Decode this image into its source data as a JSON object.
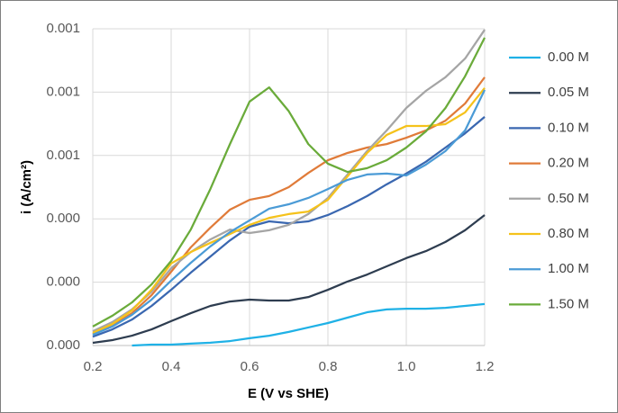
{
  "chart_data": {
    "type": "line",
    "x_label": "E (V vs SHE)",
    "y_label": "i (A/cm²)",
    "x": [
      0.2,
      0.25,
      0.3,
      0.35,
      0.4,
      0.45,
      0.5,
      0.55,
      0.6,
      0.65,
      0.7,
      0.75,
      0.8,
      0.85,
      0.9,
      0.95,
      1.0,
      1.05,
      1.1,
      1.15,
      1.2
    ],
    "xlim": [
      0.2,
      1.2
    ],
    "xticks": [
      0.2,
      0.4,
      0.6,
      0.8,
      {
        "value": 1,
        "label": "1.0"
      },
      1.2
    ],
    "ylim": [
      0,
      0.001
    ],
    "yticks": [
      {
        "value": 0,
        "label": "0.000"
      },
      {
        "value": 0.0002,
        "label": "0.000"
      },
      {
        "value": 0.0004,
        "label": "0.000"
      },
      {
        "value": 0.0006,
        "label": "0.001"
      },
      {
        "value": 0.0008,
        "label": "0.001"
      },
      {
        "value": 0.001,
        "label": "0.001"
      }
    ],
    "grid": true,
    "legend": "right",
    "series": [
      {
        "name": "0.00 M",
        "color": "#1fb1e6",
        "values": [
          null,
          null,
          0,
          3e-06,
          3e-06,
          6e-06,
          9e-06,
          1.4e-05,
          2.3e-05,
          3.1e-05,
          4.3e-05,
          5.7e-05,
          7.1e-05,
          8.8e-05,
          0.000105,
          0.000114,
          0.000116,
          0.000116,
          0.000119,
          0.000125,
          0.000131
        ]
      },
      {
        "name": "0.05 M",
        "color": "#2e3d50",
        "values": [
          8.5e-06,
          1.7e-05,
          3.1e-05,
          5.1e-05,
          7.7e-05,
          0.000102,
          0.000125,
          0.000139,
          0.000145,
          0.000142,
          0.000142,
          0.000153,
          0.000176,
          0.000202,
          0.000224,
          0.00025,
          0.000276,
          0.000298,
          0.000327,
          0.000364,
          0.000412
        ]
      },
      {
        "name": "0.10 M",
        "color": "#3a67b0",
        "values": [
          2.8e-05,
          5.1e-05,
          8.2e-05,
          0.000125,
          0.000176,
          0.00023,
          0.000281,
          0.000332,
          0.000375,
          0.000392,
          0.000386,
          0.000392,
          0.000412,
          0.00044,
          0.000472,
          0.000509,
          0.000543,
          0.00058,
          0.000625,
          0.00067,
          0.000722
        ]
      },
      {
        "name": "0.20 M",
        "color": "#e07b39",
        "values": [
          3.7e-05,
          6.3e-05,
          0.000102,
          0.000159,
          0.000233,
          0.00031,
          0.000372,
          0.000429,
          0.00046,
          0.000472,
          0.0005,
          0.000545,
          0.000585,
          0.000608,
          0.000625,
          0.000636,
          0.000656,
          0.000679,
          0.00071,
          0.000764,
          0.000847
        ]
      },
      {
        "name": "0.50 M",
        "color": "#a5a5a5",
        "values": [
          4.5e-05,
          7.4e-05,
          0.000114,
          0.00017,
          0.000244,
          0.000295,
          0.000335,
          0.000366,
          0.000355,
          0.000364,
          0.000381,
          0.000415,
          0.000466,
          0.00054,
          0.000614,
          0.000679,
          0.00075,
          0.000804,
          0.000847,
          0.000906,
          0.000997
        ]
      },
      {
        "name": "0.80 M",
        "color": "#f5c21b",
        "values": [
          4e-05,
          6.8e-05,
          0.000111,
          0.000176,
          0.000259,
          0.000295,
          0.000324,
          0.000352,
          0.000381,
          0.000403,
          0.000415,
          0.000423,
          0.00046,
          0.000534,
          0.000608,
          0.000665,
          0.000693,
          0.000693,
          0.000699,
          0.000736,
          0.000813
        ]
      },
      {
        "name": "1.00 M",
        "color": "#4b9bd6",
        "values": [
          3.4e-05,
          6e-05,
          9.7e-05,
          0.000145,
          0.000205,
          0.000261,
          0.000313,
          0.000358,
          0.000395,
          0.000432,
          0.000446,
          0.000466,
          0.000494,
          0.000523,
          0.00054,
          0.000543,
          0.000537,
          0.000571,
          0.000614,
          0.000679,
          0.000807
        ]
      },
      {
        "name": "1.50 M",
        "color": "#6aab3a",
        "values": [
          6e-05,
          9.4e-05,
          0.000136,
          0.000193,
          0.000267,
          0.000366,
          0.000494,
          0.000636,
          0.00077,
          0.000815,
          0.00074,
          0.000636,
          0.000574,
          0.000548,
          0.00056,
          0.000585,
          0.000625,
          0.000676,
          0.00075,
          0.00085,
          0.000972
        ]
      }
    ]
  }
}
